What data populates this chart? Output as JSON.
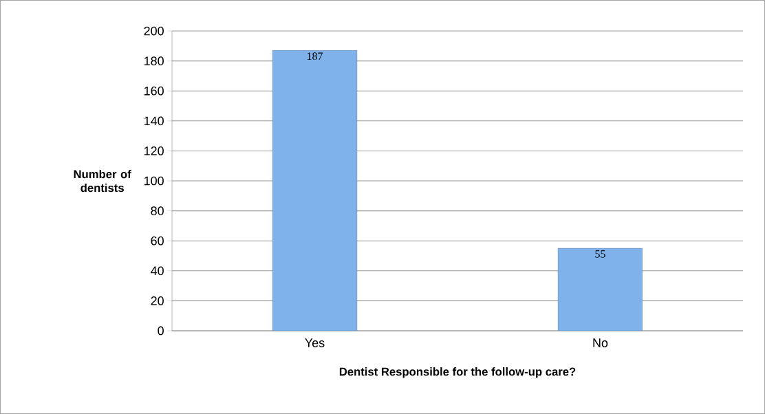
{
  "chart_data": {
    "type": "bar",
    "xlabel": "Dentist Responsible for the follow-up care?",
    "ylabel": "Number of dentists",
    "categories": [
      "Yes",
      "No"
    ],
    "values": [
      187,
      55
    ],
    "color": "#7fb1ea",
    "ylim": [
      0,
      200
    ],
    "yticks": [
      0,
      20,
      40,
      60,
      80,
      100,
      120,
      140,
      160,
      180,
      200
    ],
    "grid": "y",
    "data_labels": true
  }
}
